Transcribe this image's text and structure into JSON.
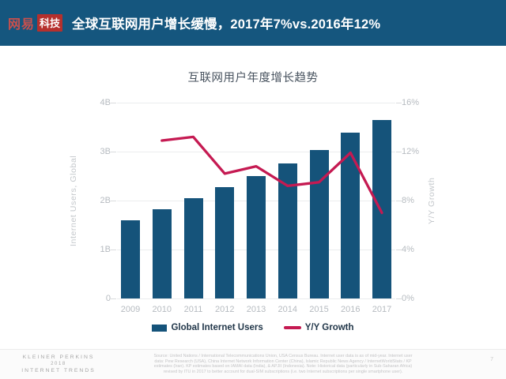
{
  "header": {
    "logo": {
      "brand": "网易",
      "suffix": "科技"
    },
    "title": "全球互联网用户增长缓慢，2017年7%vs.2016年12%"
  },
  "chart": {
    "title": "互联网用户年度增长趋势",
    "left_axis": {
      "label": "Internet Users, Global",
      "ticks_top_to_bottom": [
        "4B",
        "3B",
        "2B",
        "1B",
        "0"
      ]
    },
    "right_axis": {
      "label": "Y/Y Growth",
      "ticks_top_to_bottom": [
        "16%",
        "12%",
        "8%",
        "4%",
        "0%"
      ]
    },
    "legend": [
      {
        "label": "Global Internet Users",
        "swatch": "bar"
      },
      {
        "label": "Y/Y Growth",
        "swatch": "line"
      }
    ]
  },
  "chart_data": {
    "type": "bar",
    "title": "互联网用户年度增长趋势",
    "categories": [
      "2009",
      "2010",
      "2011",
      "2012",
      "2013",
      "2014",
      "2015",
      "2016",
      "2017"
    ],
    "series": [
      {
        "name": "Global Internet Users",
        "type": "bar",
        "axis": "left",
        "unit": "B",
        "values": [
          1.6,
          1.82,
          2.05,
          2.28,
          2.5,
          2.76,
          3.03,
          3.39,
          3.65
        ]
      },
      {
        "name": "Y/Y Growth",
        "type": "line",
        "axis": "right",
        "unit": "%",
        "values": [
          null,
          12.9,
          13.2,
          10.2,
          10.8,
          9.2,
          9.5,
          11.9,
          7.0
        ]
      }
    ],
    "left_ylabel": "Internet Users, Global",
    "right_ylabel": "Y/Y Growth",
    "left_ylim": [
      0,
      4
    ],
    "right_ylim": [
      0,
      16
    ],
    "grid": true,
    "legend_position": "bottom"
  },
  "footer": {
    "brand_lines": [
      "KLEINER PERKINS",
      "2018",
      "INTERNET TRENDS"
    ],
    "source_lines": [
      "Source: United Nations / International Telecommunications Union, USA Census Bureau. Internet user data is as of mid-year. Internet user",
      "data: Pew Research (USA), China Internet Network Information Center (China), Islamic Republic News Agency / InternetWorldStats / KP",
      "estimates (Iran). KP estimates based on IAMAI data (India), & APJII (Indonesia). Note: Historical data (particularly in Sub-Saharan Africa)",
      "revised by ITU in 2017 to better account for dual-SIM subscriptions (i.e. two Internet subscriptions per single smartphone user)."
    ],
    "page": "7"
  },
  "colors": {
    "header_bg": "#15567e",
    "bar": "#15537a",
    "line": "#c51a52",
    "grid": "#ebedee",
    "tickmark": "#d9dbdd",
    "axis_text": "#b6bbc0",
    "axis_faint": "#c3c7cb",
    "chart_title": "#47525e",
    "legend_text": "#22374a",
    "footer_text": "#a6a6a6",
    "source_text": "#c4c4c6",
    "logo_red": "#b5302d",
    "logo_text_red": "#c9504d"
  }
}
